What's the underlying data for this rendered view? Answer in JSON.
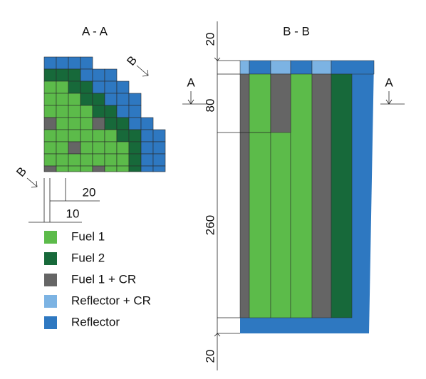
{
  "sections": {
    "aa": "A - A",
    "bb": "B - B"
  },
  "cut_marks": {
    "b_top": "B",
    "b_bottom": "B",
    "a_left": "A",
    "a_right": "A"
  },
  "dimensions": {
    "aa_pitch": "20",
    "aa_gap": "10",
    "bb_top": "20",
    "bb_upper": "80",
    "bb_core": "260",
    "bb_bottom": "20"
  },
  "legend": [
    {
      "label": "Fuel 1",
      "color": "#5cbb4a"
    },
    {
      "label": "Fuel 2",
      "color": "#17693a"
    },
    {
      "label": "Fuel 1 + CR",
      "color": "#656565"
    },
    {
      "label": "Reflector + CR",
      "color": "#7cb3e3"
    },
    {
      "label": "Reflector",
      "color": "#2e78c1"
    }
  ]
}
